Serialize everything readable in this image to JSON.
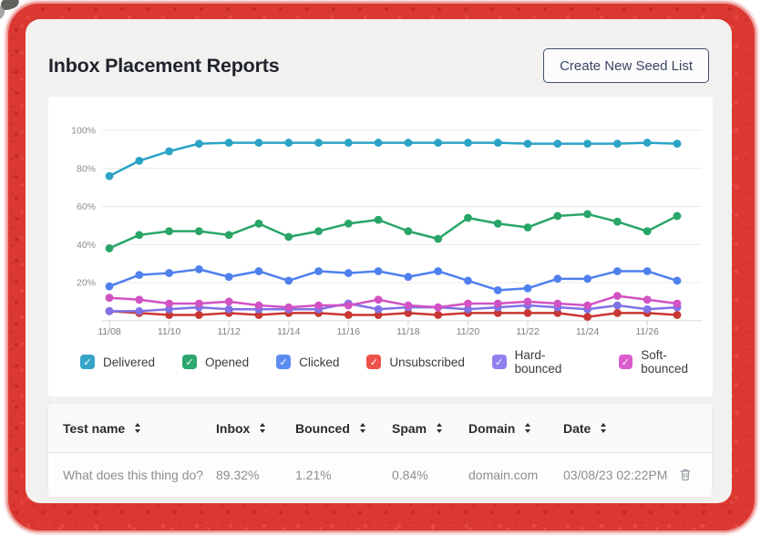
{
  "page": {
    "title": "Inbox Placement Reports",
    "create_button": "Create New Seed List"
  },
  "chart_data": {
    "type": "line",
    "x": [
      "11/08",
      "11/09",
      "11/10",
      "11/11",
      "11/12",
      "11/13",
      "11/14",
      "11/15",
      "11/16",
      "11/17",
      "11/18",
      "11/19",
      "11/20",
      "11/21",
      "11/22",
      "11/23",
      "11/24",
      "11/25",
      "11/26",
      "11/27"
    ],
    "x_tick_labels": [
      "11/08",
      "11/10",
      "11/12",
      "11/14",
      "11/16",
      "11/18",
      "11/20",
      "11/22",
      "11/24",
      "11/26"
    ],
    "y_tick_labels": [
      "20%",
      "40%",
      "60%",
      "80%",
      "100%"
    ],
    "ylim": [
      0,
      100
    ],
    "grid": true,
    "legend_position": "bottom",
    "series": [
      {
        "name": "Delivered",
        "color": "#2ba3c6",
        "legend_color": "#37a5c9",
        "checked": true,
        "values": [
          76,
          84,
          89,
          93,
          93.5,
          93.5,
          93.5,
          93.5,
          93.5,
          93.5,
          93.5,
          93.5,
          93.5,
          93.5,
          93,
          93,
          93,
          93,
          93.5,
          93
        ]
      },
      {
        "name": "Opened",
        "color": "#28a567",
        "legend_color": "#2ca86e",
        "checked": true,
        "values": [
          38,
          45,
          47,
          47,
          45,
          51,
          44,
          47,
          51,
          53,
          47,
          43,
          54,
          51,
          49,
          55,
          56,
          52,
          47,
          55
        ]
      },
      {
        "name": "Clicked",
        "color": "#4f80ee",
        "legend_color": "#5c8cf2",
        "checked": true,
        "values": [
          18,
          24,
          25,
          27,
          23,
          26,
          21,
          26,
          25,
          26,
          23,
          26,
          21,
          16,
          17,
          22,
          22,
          26,
          26,
          21
        ]
      },
      {
        "name": "Unsubscribed",
        "color": "#c93732",
        "legend_color": "#ec5249",
        "checked": true,
        "values": [
          5,
          4,
          3,
          3,
          4,
          3,
          4,
          4,
          3,
          3,
          4,
          3,
          4,
          4,
          4,
          4,
          2,
          4,
          4,
          3
        ]
      },
      {
        "name": "Hard-bounced",
        "color": "#7f72e6",
        "legend_color": "#8f80f0",
        "checked": true,
        "values": [
          5,
          5,
          6,
          7,
          6,
          6,
          6,
          6,
          9,
          6,
          7,
          7,
          6,
          7,
          8,
          7,
          6,
          8,
          6,
          7
        ]
      },
      {
        "name": "Soft-bounced",
        "color": "#d152c3",
        "legend_color": "#da5ccd",
        "checked": true,
        "values": [
          12,
          11,
          9,
          9,
          10,
          8,
          7,
          8,
          8,
          11,
          8,
          7,
          9,
          9,
          10,
          9,
          8,
          13,
          11,
          9
        ]
      }
    ]
  },
  "table": {
    "columns": [
      {
        "label": "Test name",
        "key": "test_name",
        "sortable": true
      },
      {
        "label": "Inbox",
        "key": "inbox",
        "sortable": true
      },
      {
        "label": "Bounced",
        "key": "bounced",
        "sortable": true
      },
      {
        "label": "Spam",
        "key": "spam",
        "sortable": true
      },
      {
        "label": "Domain",
        "key": "domain",
        "sortable": true
      },
      {
        "label": "Date",
        "key": "date",
        "sortable": true
      }
    ],
    "rows": [
      {
        "test_name": "What does this thing do?",
        "inbox": "89.32%",
        "bounced": "1.21%",
        "spam": "0.84%",
        "domain": "domain.com",
        "date": "03/08/23 02:22PM"
      }
    ]
  },
  "icons": {
    "legend_check": "✓",
    "trash": "trash-icon",
    "sort": "sort-icon"
  },
  "colors": {
    "frame_red": "#dc3832",
    "card_bg": "#f2f1f0",
    "panel_bg": "#ffffff",
    "grid_line": "#e9e8e7",
    "axis_text": "#8c8c8c",
    "button_border": "#44516c"
  }
}
